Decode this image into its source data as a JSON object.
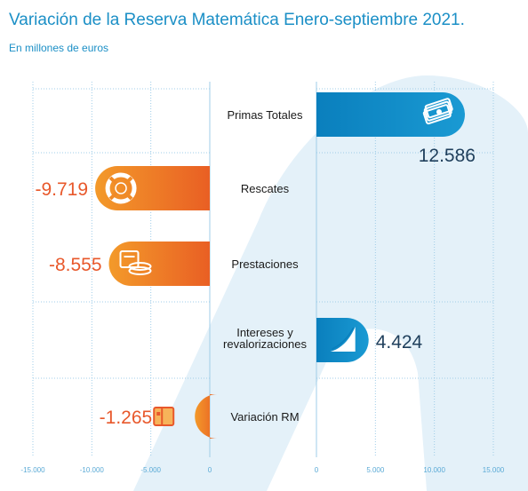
{
  "header": {
    "title": "Variación de la Reserva Matemática Enero-septiembre 2021.",
    "subtitle": "En millones de euros"
  },
  "colors": {
    "title": "#1b8fc6",
    "negative_bar": "#ef7d22",
    "negative_value": "#e8582b",
    "positive_bar": "#0f88c2",
    "positive_value": "#1f3f5c",
    "grid": "#9fcde8",
    "watermark": "#e4f1f9"
  },
  "chart_data": {
    "type": "bar",
    "orientation": "horizontal",
    "categories": [
      "Primas Totales",
      "Rescates",
      "Prestaciones",
      "Intereses y revalorizaciones",
      "Variación RM"
    ],
    "values": [
      12586,
      -9719,
      -8555,
      4424,
      -1265
    ],
    "value_labels": [
      "12.586",
      "-9.719",
      "-8.555",
      "4.424",
      "-1.265"
    ],
    "icons": [
      "banknotes-icon",
      "lifebuoy-icon",
      "cash-register-icon",
      "growth-chart-icon",
      "wallet-icon"
    ],
    "xlim": [
      -15000,
      15000
    ],
    "left_ticks": [
      -15000,
      -10000,
      -5000,
      0
    ],
    "left_tick_labels": [
      "-15.000",
      "-10.000",
      "-5.000",
      "0"
    ],
    "right_ticks": [
      0,
      5000,
      10000,
      15000
    ],
    "right_tick_labels": [
      "0",
      "5.000",
      "10.000",
      "15.000"
    ],
    "grid": true
  }
}
